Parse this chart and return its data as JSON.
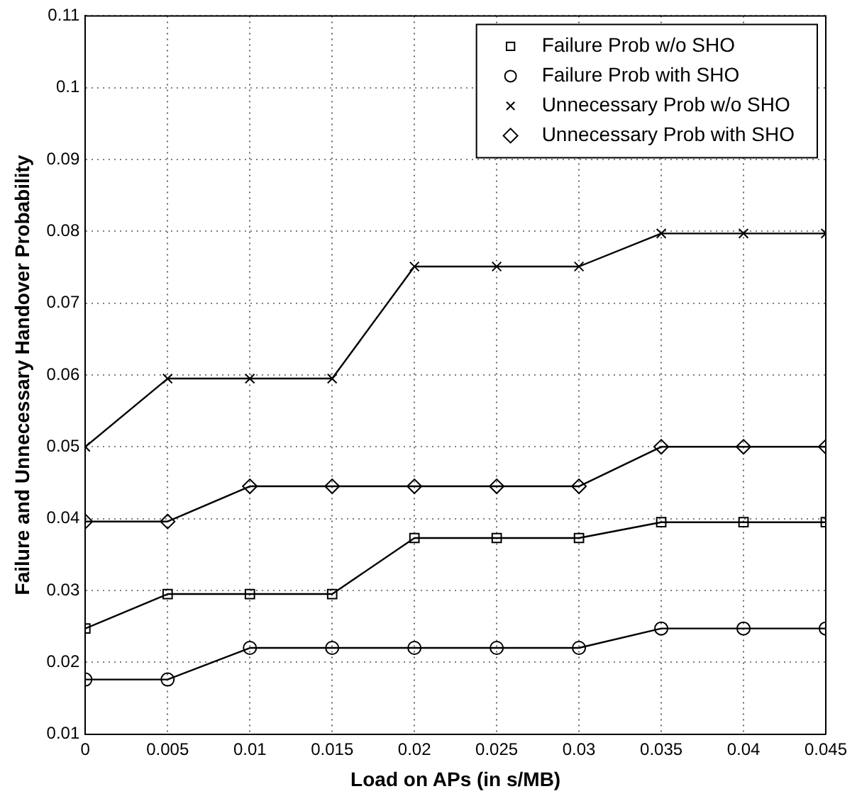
{
  "chart_data": {
    "type": "line",
    "xlabel": "Load on APs (in s/MB)",
    "ylabel": "Failure and Unnecessary Handover Probability",
    "x": [
      0,
      0.005,
      0.01,
      0.015,
      0.02,
      0.025,
      0.03,
      0.035,
      0.04,
      0.045
    ],
    "series": [
      {
        "name": "Failure Prob w/o SHO",
        "color": "#000000",
        "marker": "square",
        "values": [
          0.0247,
          0.0295,
          0.0295,
          0.0295,
          0.0373,
          0.0373,
          0.0373,
          0.0395,
          0.0395,
          0.0395
        ]
      },
      {
        "name": "Failure Prob with SHO",
        "color": "#000000",
        "marker": "circle",
        "values": [
          0.0176,
          0.0176,
          0.022,
          0.022,
          0.022,
          0.022,
          0.022,
          0.0247,
          0.0247,
          0.0247
        ]
      },
      {
        "name": "Unnecessary Prob w/o SHO",
        "color": "#000000",
        "marker": "cross",
        "values": [
          0.05,
          0.0595,
          0.0595,
          0.0595,
          0.0751,
          0.0751,
          0.0751,
          0.0797,
          0.0797,
          0.0797
        ]
      },
      {
        "name": "Unnecessary Prob with SHO",
        "color": "#000000",
        "marker": "diamond",
        "values": [
          0.0396,
          0.0396,
          0.0445,
          0.0445,
          0.0445,
          0.0445,
          0.0445,
          0.05,
          0.05,
          0.05
        ]
      }
    ],
    "xlim": [
      0,
      0.045
    ],
    "xticks": [
      0,
      0.005,
      0.01,
      0.015,
      0.02,
      0.025,
      0.03,
      0.035,
      0.04,
      0.045
    ],
    "ylim": [
      0.01,
      0.11
    ],
    "yticks": [
      0.01,
      0.02,
      0.03,
      0.04,
      0.05,
      0.06,
      0.07,
      0.08,
      0.09,
      0.1,
      0.11
    ],
    "grid": true,
    "legend": "top right",
    "line_style": "solid"
  }
}
